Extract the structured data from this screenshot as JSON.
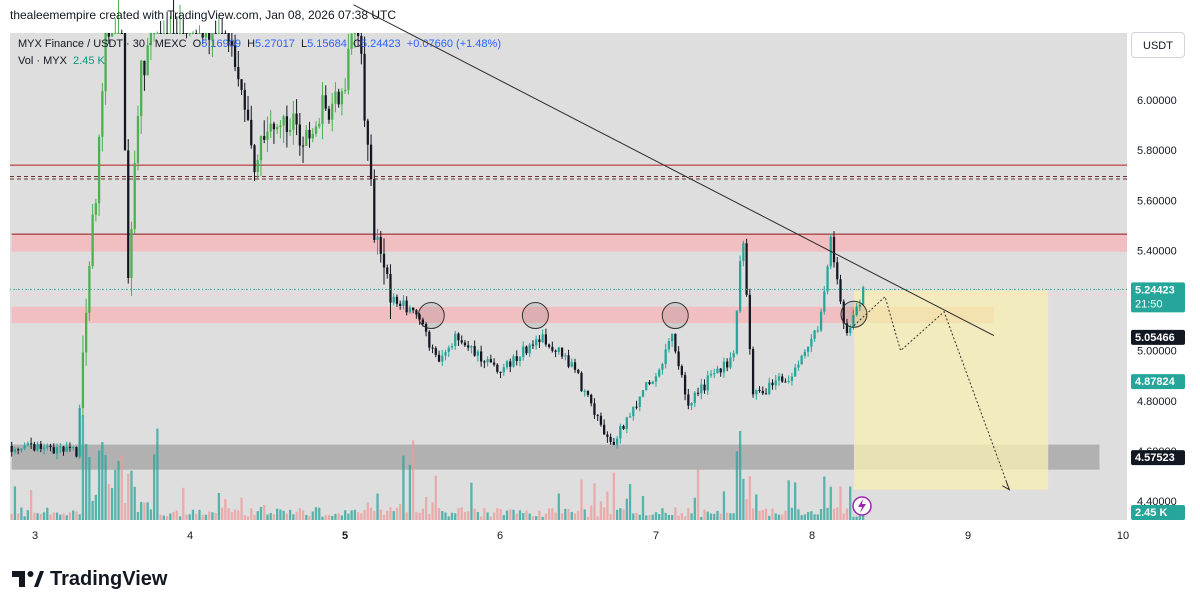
{
  "header": {
    "text": "thealeemempire created with TradingView.com, Jan 08, 2026 07:38 UTC"
  },
  "legend": {
    "symbol": "MYX Finance / USDT · 30 · MEXC",
    "open_label": "O",
    "open": "5.16909",
    "high_label": "H",
    "high": "5.27017",
    "low_label": "L",
    "low": "5.15684",
    "close_label": "C",
    "close": "5.24423",
    "change": "+0.07660 (+1.48%)",
    "volume_label": "Vol · MYX",
    "volume": "2.45 K"
  },
  "currency_button": "USDT",
  "footer": {
    "logo": "TradingView"
  },
  "colors": {
    "up": "#26a69a",
    "up_bright": "#4caf50",
    "down": "#131722",
    "vol_up": "#26a69a",
    "vol_down": "#ef9a9a",
    "zone_red": "#f4b9bd",
    "zone_gray": "#a9a9a9",
    "projection_zone": "#f5edb5"
  },
  "chart_data": {
    "type": "candlestick",
    "symbol": "MYX Finance / USDT",
    "interval": "30",
    "exchange": "MEXC",
    "x_ticks": [
      "3",
      "4",
      "5",
      "6",
      "7",
      "8",
      "9",
      "10"
    ],
    "y_ticks": [
      "4.40000",
      "4.60000",
      "4.80000",
      "5.00000",
      "5.20000",
      "5.40000",
      "5.60000",
      "5.80000",
      "6.00000"
    ],
    "ylim": [
      4.29,
      6.43
    ],
    "xlim": [
      2.85,
      10.0
    ],
    "price_labels": [
      {
        "value": "5.24423",
        "sub": "21:50",
        "price": 5.24423,
        "style": "up"
      },
      {
        "value": "5.05466",
        "price": 5.05466,
        "style": "dark"
      },
      {
        "value": "4.87824",
        "price": 4.87824,
        "style": "up"
      },
      {
        "value": "4.57523",
        "price": 4.57523,
        "style": "dark"
      },
      {
        "value": "2.45 K",
        "price": 4.31,
        "style": "up"
      }
    ],
    "levels": [
      {
        "price": 5.74,
        "style": "solid",
        "color": "#b71c1c"
      },
      {
        "price": 5.695,
        "style": "dashed",
        "color": "#6b2d2d"
      },
      {
        "price": 5.685,
        "style": "dashed",
        "color": "#6b2d2d"
      },
      {
        "price": 5.244,
        "style": "dotted",
        "color": "#9e9e9e"
      }
    ],
    "zones": [
      {
        "x0": 2.85,
        "x1": 10.05,
        "p0": 5.395,
        "p1": 5.465,
        "color": "#f4b9bd",
        "border": "#8b1a1a"
      },
      {
        "x0": 2.85,
        "x1": 8.25,
        "p0": 5.11,
        "p1": 5.175,
        "color": "#f4b9bd"
      },
      {
        "x0": 8.25,
        "x1": 9.17,
        "p0": 5.11,
        "p1": 5.175,
        "color": "#f2a98f"
      },
      {
        "x0": 2.85,
        "x1": 9.85,
        "p0": 4.525,
        "p1": 4.625,
        "color": "#a9a9a9"
      }
    ],
    "projection_box": {
      "x0": 8.27,
      "x1": 9.52,
      "p0": 4.445,
      "p1": 5.24,
      "color": "#f5edb5"
    },
    "trendline": [
      [
        5.05,
        6.38
      ],
      [
        9.17,
        5.06
      ]
    ],
    "circles": [
      [
        5.55,
        5.14
      ],
      [
        6.22,
        5.14
      ],
      [
        7.12,
        5.14
      ],
      [
        8.27,
        5.145
      ]
    ],
    "projection_path": [
      [
        8.27,
        5.1
      ],
      [
        8.47,
        5.215
      ],
      [
        8.57,
        5.0
      ],
      [
        8.85,
        5.155
      ],
      [
        9.27,
        4.445
      ]
    ],
    "close_level": 5.24423,
    "candles_seed": 5,
    "candles_waypoints": [
      [
        2.85,
        4.62
      ],
      [
        3.27,
        4.6
      ],
      [
        3.38,
        5.55
      ],
      [
        3.45,
        6.2
      ],
      [
        3.55,
        6.55
      ],
      [
        3.6,
        5.3
      ],
      [
        3.68,
        6.1
      ],
      [
        3.8,
        6.45
      ],
      [
        4.05,
        6.3
      ],
      [
        4.25,
        6.3
      ],
      [
        4.4,
        5.75
      ],
      [
        4.55,
        5.95
      ],
      [
        4.75,
        5.85
      ],
      [
        5.0,
        6.1
      ],
      [
        5.08,
        6.3
      ],
      [
        5.18,
        5.5
      ],
      [
        5.3,
        5.2
      ],
      [
        5.45,
        5.15
      ],
      [
        5.6,
        4.95
      ],
      [
        5.7,
        5.05
      ],
      [
        6.0,
        4.92
      ],
      [
        6.25,
        5.05
      ],
      [
        6.45,
        4.95
      ],
      [
        6.7,
        4.62
      ],
      [
        7.0,
        4.92
      ],
      [
        7.1,
        5.05
      ],
      [
        7.2,
        4.8
      ],
      [
        7.5,
        4.98
      ],
      [
        7.55,
        5.5
      ],
      [
        7.62,
        4.82
      ],
      [
        7.9,
        4.92
      ],
      [
        8.05,
        5.1
      ],
      [
        8.12,
        5.45
      ],
      [
        8.22,
        5.05
      ],
      [
        8.33,
        5.24
      ]
    ]
  }
}
